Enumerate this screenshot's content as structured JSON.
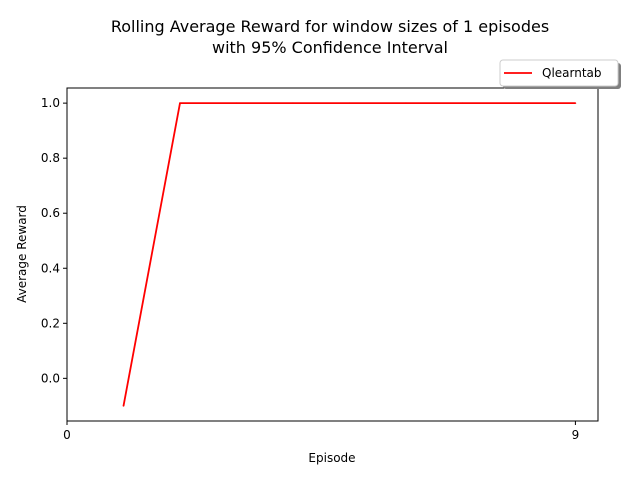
{
  "chart_data": {
    "type": "line",
    "title_lines": [
      "Rolling Average Reward for window sizes of 1 episodes",
      "with 95% Confidence Interval"
    ],
    "xlabel": "Episode",
    "ylabel": "Average Reward",
    "xlim": [
      0,
      9.4
    ],
    "ylim": [
      -0.155,
      1.055
    ],
    "xticks": [
      0,
      9
    ],
    "xtick_labels": [
      "0",
      "9"
    ],
    "yticks": [
      0.0,
      0.2,
      0.4,
      0.6,
      0.8,
      1.0
    ],
    "ytick_labels": [
      "0.0",
      "0.2",
      "0.4",
      "0.6",
      "0.8",
      "1.0"
    ],
    "grid": false,
    "legend_position": "top-right, outside above plot",
    "series": [
      {
        "name": "Qlearntab",
        "color": "#ff0000",
        "x": [
          1,
          2,
          3,
          4,
          5,
          6,
          7,
          8,
          9
        ],
        "y": [
          -0.1,
          1.0,
          1.0,
          1.0,
          1.0,
          1.0,
          1.0,
          1.0,
          1.0
        ]
      }
    ]
  }
}
